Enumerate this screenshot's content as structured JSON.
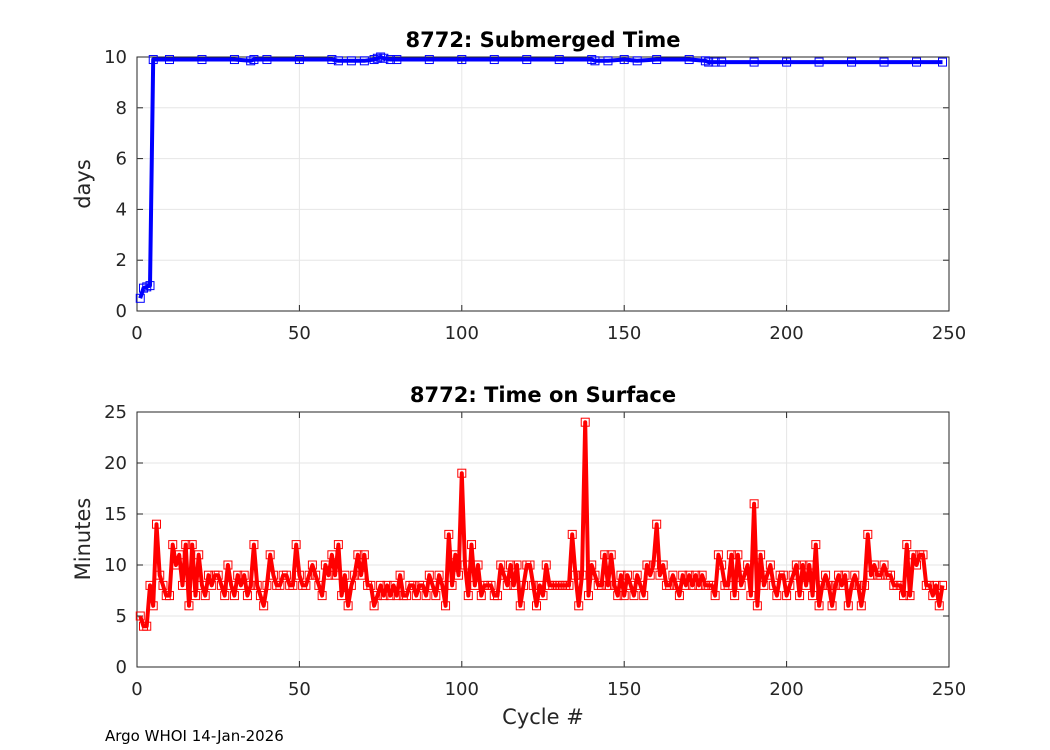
{
  "footer": "Argo WHOI 14-Jan-2026",
  "chart_data": [
    {
      "type": "line",
      "title": "8772: Submerged Time",
      "xlabel": "",
      "ylabel": "days",
      "xlim": [
        0,
        250
      ],
      "ylim": [
        0,
        10
      ],
      "xticks": [
        0,
        50,
        100,
        150,
        200,
        250
      ],
      "yticks": [
        0,
        2,
        4,
        6,
        8,
        10
      ],
      "grid": true,
      "marker": "square",
      "color": "#0000ff",
      "series": [
        {
          "x": [
            1,
            2,
            3,
            4,
            5,
            10,
            20,
            30,
            35,
            36,
            40,
            50,
            60,
            62,
            66,
            70,
            73,
            74,
            75,
            76,
            78,
            80,
            90,
            100,
            110,
            120,
            130,
            140,
            141,
            145,
            150,
            154,
            160,
            170,
            175,
            176,
            178,
            180,
            190,
            200,
            210,
            220,
            230,
            240,
            248
          ],
          "y": [
            0.5,
            0.9,
            0.95,
            1.0,
            9.9,
            9.9,
            9.9,
            9.9,
            9.85,
            9.9,
            9.9,
            9.9,
            9.9,
            9.85,
            9.85,
            9.85,
            9.9,
            9.95,
            10.0,
            9.95,
            9.9,
            9.9,
            9.9,
            9.9,
            9.9,
            9.9,
            9.9,
            9.9,
            9.85,
            9.85,
            9.9,
            9.85,
            9.9,
            9.9,
            9.85,
            9.8,
            9.8,
            9.8,
            9.8,
            9.8,
            9.8,
            9.8,
            9.8,
            9.8,
            9.8
          ]
        }
      ]
    },
    {
      "type": "line",
      "title": "8772: Time on Surface",
      "xlabel": "Cycle #",
      "ylabel": "Minutes",
      "xlim": [
        0,
        250
      ],
      "ylim": [
        0,
        25
      ],
      "xticks": [
        0,
        50,
        100,
        150,
        200,
        250
      ],
      "yticks": [
        0,
        5,
        10,
        15,
        20,
        25
      ],
      "grid": true,
      "marker": "square",
      "color": "#ff0000",
      "series": [
        {
          "x": [
            1,
            2,
            3,
            4,
            5,
            6,
            7,
            8,
            9,
            10,
            11,
            12,
            13,
            14,
            15,
            16,
            17,
            18,
            19,
            20,
            21,
            22,
            23,
            24,
            25,
            26,
            27,
            28,
            29,
            30,
            31,
            32,
            33,
            34,
            35,
            36,
            37,
            38,
            39,
            40,
            41,
            42,
            43,
            44,
            45,
            46,
            47,
            48,
            49,
            50,
            51,
            52,
            53,
            54,
            55,
            56,
            57,
            58,
            59,
            60,
            61,
            62,
            63,
            64,
            65,
            66,
            67,
            68,
            69,
            70,
            71,
            72,
            73,
            74,
            75,
            76,
            77,
            78,
            79,
            80,
            81,
            82,
            83,
            84,
            85,
            86,
            87,
            88,
            89,
            90,
            91,
            92,
            93,
            94,
            95,
            96,
            97,
            98,
            99,
            100,
            101,
            102,
            103,
            104,
            105,
            106,
            107,
            108,
            109,
            110,
            111,
            112,
            113,
            114,
            115,
            116,
            117,
            118,
            119,
            120,
            121,
            122,
            123,
            124,
            125,
            126,
            127,
            128,
            129,
            130,
            131,
            132,
            133,
            134,
            135,
            136,
            137,
            138,
            139,
            140,
            141,
            142,
            143,
            144,
            145,
            146,
            147,
            148,
            149,
            150,
            151,
            152,
            153,
            154,
            155,
            156,
            157,
            158,
            159,
            160,
            161,
            162,
            163,
            164,
            165,
            166,
            167,
            168,
            169,
            170,
            171,
            172,
            173,
            174,
            175,
            176,
            177,
            178,
            179,
            180,
            181,
            182,
            183,
            184,
            185,
            186,
            187,
            188,
            189,
            190,
            191,
            192,
            193,
            194,
            195,
            196,
            197,
            198,
            199,
            200,
            201,
            202,
            203,
            204,
            205,
            206,
            207,
            208,
            209,
            210,
            211,
            212,
            213,
            214,
            215,
            216,
            217,
            218,
            219,
            220,
            221,
            222,
            223,
            224,
            225,
            226,
            227,
            228,
            229,
            230,
            231,
            232,
            233,
            234,
            235,
            236,
            237,
            238,
            239,
            240,
            241,
            242,
            243,
            244,
            245,
            246,
            247,
            248
          ],
          "y": [
            5,
            4,
            4,
            8,
            6,
            14,
            9,
            8,
            7,
            7,
            12,
            10,
            11,
            8,
            12,
            6,
            12,
            7,
            11,
            8,
            7,
            9,
            8,
            9,
            9,
            8,
            7,
            10,
            8,
            7,
            9,
            8,
            9,
            7,
            8,
            12,
            8,
            7,
            6,
            8,
            11,
            9,
            8,
            8,
            9,
            9,
            8,
            8,
            12,
            9,
            8,
            8,
            9,
            10,
            9,
            8,
            7,
            10,
            9,
            11,
            9,
            12,
            7,
            9,
            6,
            8,
            9,
            11,
            9,
            11,
            8,
            8,
            6,
            7,
            8,
            7,
            8,
            7,
            8,
            7,
            9,
            7,
            7,
            8,
            8,
            7,
            8,
            8,
            7,
            9,
            8,
            7,
            9,
            8,
            6,
            13,
            8,
            11,
            9,
            19,
            10,
            7,
            12,
            8,
            10,
            7,
            8,
            8,
            8,
            7,
            7,
            10,
            9,
            8,
            10,
            8,
            10,
            6,
            8,
            10,
            10,
            8,
            6,
            8,
            7,
            10,
            8,
            8,
            8,
            8,
            8,
            8,
            8,
            13,
            9,
            6,
            9,
            24,
            7,
            10,
            9,
            8,
            8,
            11,
            8,
            11,
            8,
            7,
            9,
            7,
            9,
            8,
            7,
            9,
            8,
            7,
            10,
            9,
            10,
            14,
            9,
            10,
            8,
            8,
            9,
            8,
            7,
            9,
            8,
            9,
            8,
            9,
            8,
            9,
            8,
            8,
            8,
            7,
            11,
            10,
            8,
            8,
            11,
            7,
            11,
            8,
            9,
            10,
            7,
            16,
            6,
            11,
            8,
            9,
            10,
            8,
            7,
            9,
            9,
            7,
            8,
            9,
            10,
            7,
            10,
            8,
            10,
            7,
            12,
            6,
            8,
            9,
            8,
            6,
            8,
            9,
            8,
            9,
            6,
            8,
            9,
            8,
            6,
            8,
            13,
            9,
            10,
            9,
            9,
            10,
            9,
            9,
            8,
            8,
            8,
            7,
            12,
            7,
            11,
            10,
            11,
            11,
            8,
            8,
            7,
            8,
            6,
            8
          ],
          "marker_every": 1
        }
      ]
    }
  ]
}
